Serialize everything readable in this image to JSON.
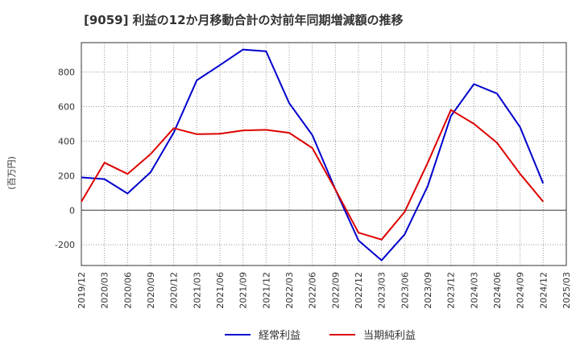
{
  "chart_data": {
    "type": "line",
    "title": "[9059]  利益の12か月移動合計の対前年同期増減額の推移",
    "xlabel": "",
    "ylabel": "(百万円)",
    "ylim": [
      -320,
      970
    ],
    "yticks": [
      -200,
      0,
      200,
      400,
      600,
      800
    ],
    "grid": true,
    "legend_position": "bottom-center",
    "categories": [
      "2019/12",
      "2020/03",
      "2020/06",
      "2020/09",
      "2020/12",
      "2021/03",
      "2021/06",
      "2021/09",
      "2021/12",
      "2022/03",
      "2022/06",
      "2022/09",
      "2022/12",
      "2023/03",
      "2023/06",
      "2023/09",
      "2023/12",
      "2024/03",
      "2024/06",
      "2024/09",
      "2024/12",
      "2025/03"
    ],
    "series": [
      {
        "name": "経常利益",
        "color": "#0000cc",
        "values": [
          190,
          180,
          97,
          220,
          450,
          752,
          840,
          930,
          920,
          620,
          435,
          120,
          -175,
          -290,
          -140,
          140,
          545,
          730,
          675,
          480,
          155,
          null
        ]
      },
      {
        "name": "当期純利益",
        "color": "#dd0000",
        "values": [
          50,
          275,
          210,
          325,
          475,
          440,
          443,
          462,
          465,
          448,
          360,
          120,
          -130,
          -170,
          -10,
          275,
          580,
          500,
          390,
          210,
          50,
          null
        ]
      }
    ]
  }
}
